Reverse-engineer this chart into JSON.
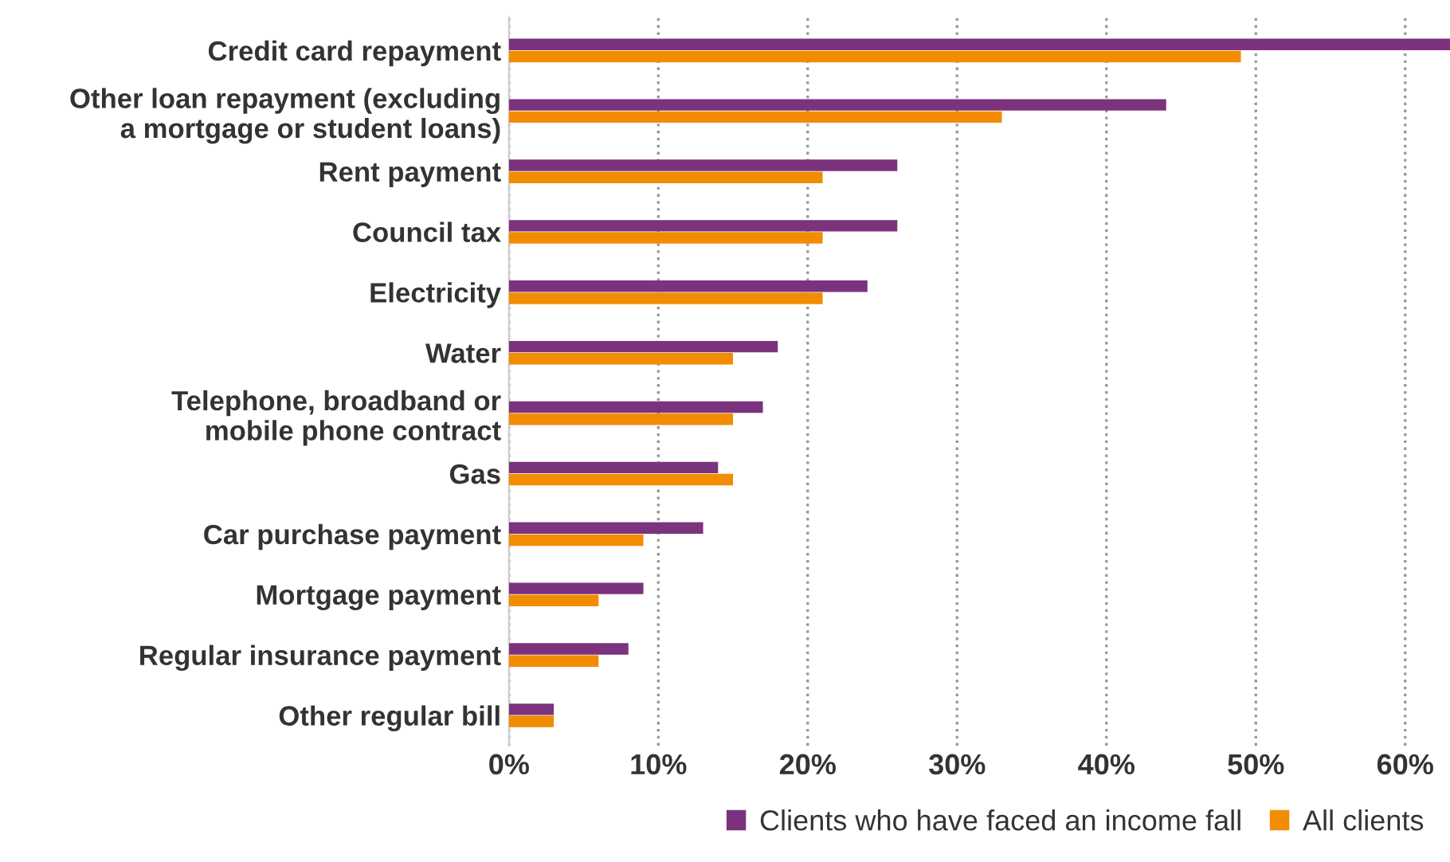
{
  "chart_data": {
    "type": "bar",
    "orientation": "horizontal",
    "categories": [
      "Credit card repayment",
      "Other loan repayment (excluding\na mortgage or student loans)",
      "Rent payment",
      "Council tax",
      "Electricity",
      "Water",
      "Telephone, broadband or\nmobile phone contract",
      "Gas",
      "Car purchase payment",
      "Mortgage payment",
      "Regular insurance payment",
      "Other regular bill"
    ],
    "series": [
      {
        "name": "Clients who have faced an income fall",
        "color": "#7b337d",
        "values": [
          63,
          44,
          26,
          26,
          24,
          18,
          17,
          14,
          13,
          9,
          8,
          3
        ]
      },
      {
        "name": "All clients",
        "color": "#f28c00",
        "values": [
          49,
          33,
          21,
          21,
          21,
          15,
          15,
          15,
          9,
          6,
          6,
          3
        ]
      }
    ],
    "xlim": [
      0,
      63
    ],
    "xticks": [
      {
        "value": 0,
        "label": "0%"
      },
      {
        "value": 10,
        "label": "10%"
      },
      {
        "value": 20,
        "label": "20%"
      },
      {
        "value": 30,
        "label": "30%"
      },
      {
        "value": 40,
        "label": "40%"
      },
      {
        "value": 50,
        "label": "50%"
      },
      {
        "value": 60,
        "label": "60%"
      }
    ],
    "grid": "x",
    "legend": "bottom"
  }
}
